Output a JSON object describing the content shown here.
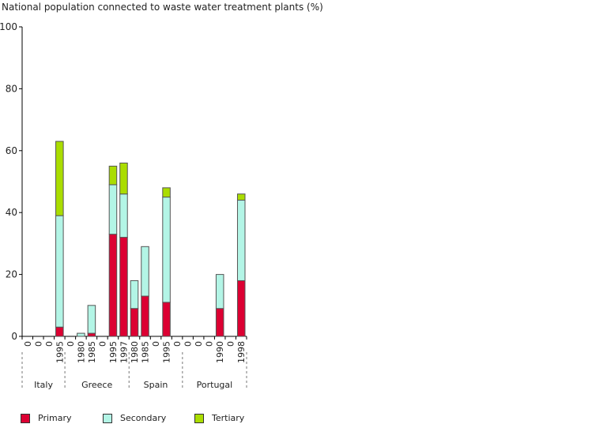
{
  "chart_data": {
    "type": "bar",
    "stacked": true,
    "title": "National population connected to waste water treatment plants (%)",
    "ylim": [
      0,
      100
    ],
    "yticks": [
      0,
      20,
      40,
      60,
      80,
      100
    ],
    "groups": [
      {
        "name": "Italy",
        "labels": [
          "0",
          "0",
          "0",
          "1995"
        ]
      },
      {
        "name": "Greece",
        "labels": [
          "0",
          "1980",
          "1985",
          "0",
          "1995",
          "1997"
        ]
      },
      {
        "name": "Spain",
        "labels": [
          "1980",
          "1985",
          "0",
          "1995",
          "0"
        ]
      },
      {
        "name": "Portugal",
        "labels": [
          "0",
          "0",
          "0",
          "1990",
          "0",
          "1998"
        ]
      }
    ],
    "series": [
      {
        "name": "Primary",
        "color": "#dc0032",
        "values": [
          0,
          0,
          0,
          3,
          0,
          0,
          1,
          0,
          33,
          32,
          9,
          13,
          0,
          11,
          0,
          0,
          0,
          0,
          9,
          0,
          18
        ]
      },
      {
        "name": "Secondary",
        "color": "#b3f5e6",
        "values": [
          0,
          0,
          0,
          36,
          0,
          1,
          9,
          0,
          16,
          14,
          9,
          16,
          0,
          34,
          0,
          0,
          0,
          0,
          11,
          0,
          26
        ]
      },
      {
        "name": "Tertiary",
        "color": "#aadd00",
        "values": [
          0,
          0,
          0,
          24,
          0,
          0,
          0,
          0,
          6,
          10,
          0,
          0,
          0,
          3,
          0,
          0,
          0,
          0,
          0,
          0,
          2
        ]
      }
    ],
    "legend": "bottom"
  }
}
